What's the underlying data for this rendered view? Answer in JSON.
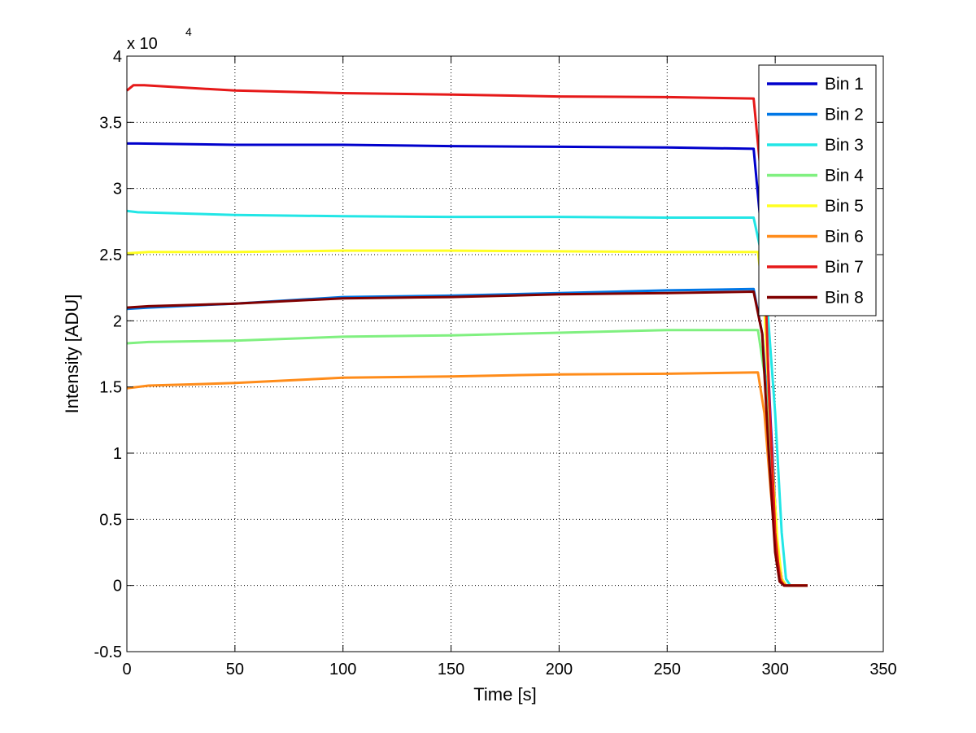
{
  "chart_data": {
    "type": "line",
    "title": "",
    "xlabel": "Time [s]",
    "ylabel": "Intensity [ADU]",
    "y_multiplier_label": "x 10",
    "y_multiplier_exponent": "4",
    "xlim": [
      0,
      350
    ],
    "ylim": [
      -0.5,
      4
    ],
    "x_ticks": [
      "0",
      "50",
      "100",
      "150",
      "200",
      "250",
      "300",
      "350"
    ],
    "y_ticks": [
      "-0.5",
      "0",
      "0.5",
      "1",
      "1.5",
      "2",
      "2.5",
      "3",
      "3.5",
      "4"
    ],
    "x_tick_values": [
      0,
      50,
      100,
      150,
      200,
      250,
      300,
      350
    ],
    "y_tick_values": [
      -0.5,
      0,
      0.5,
      1,
      1.5,
      2,
      2.5,
      3,
      3.5,
      4
    ],
    "grid": true,
    "legend_position": "top-right",
    "series": [
      {
        "name": "Bin 1",
        "color": "#0000cc",
        "x": [
          0,
          5,
          50,
          100,
          150,
          200,
          250,
          290,
          294,
          298,
          301,
          303,
          305,
          315
        ],
        "y": [
          3.34,
          3.34,
          3.33,
          3.33,
          3.32,
          3.315,
          3.31,
          3.3,
          2.6,
          1.2,
          0.3,
          0.05,
          0,
          0
        ]
      },
      {
        "name": "Bin 2",
        "color": "#0077e6",
        "x": [
          0,
          10,
          50,
          100,
          150,
          200,
          250,
          290,
          294,
          298,
          301,
          303,
          305,
          315
        ],
        "y": [
          2.09,
          2.1,
          2.13,
          2.18,
          2.19,
          2.21,
          2.23,
          2.24,
          1.9,
          1.0,
          0.3,
          0.05,
          0,
          0
        ]
      },
      {
        "name": "Bin 3",
        "color": "#22e6e6",
        "x": [
          0,
          5,
          50,
          100,
          150,
          200,
          250,
          290,
          295,
          300,
          303,
          305,
          307,
          315
        ],
        "y": [
          2.83,
          2.82,
          2.8,
          2.79,
          2.785,
          2.785,
          2.78,
          2.78,
          2.4,
          1.3,
          0.4,
          0.05,
          0,
          0
        ]
      },
      {
        "name": "Bin 4",
        "color": "#80f080",
        "x": [
          0,
          10,
          50,
          100,
          150,
          200,
          250,
          292,
          295,
          298,
          301,
          303,
          305,
          315
        ],
        "y": [
          1.83,
          1.84,
          1.85,
          1.88,
          1.89,
          1.91,
          1.93,
          1.93,
          1.6,
          0.9,
          0.3,
          0.05,
          0,
          0
        ]
      },
      {
        "name": "Bin 5",
        "color": "#ffff22",
        "x": [
          0,
          10,
          50,
          100,
          150,
          200,
          250,
          292,
          295,
          298,
          301,
          303,
          305,
          315
        ],
        "y": [
          2.51,
          2.52,
          2.52,
          2.53,
          2.53,
          2.525,
          2.52,
          2.52,
          2.1,
          1.1,
          0.35,
          0.05,
          0,
          0
        ]
      },
      {
        "name": "Bin 6",
        "color": "#ff8c1a",
        "x": [
          0,
          10,
          50,
          100,
          150,
          200,
          250,
          292,
          295,
          298,
          301,
          303,
          305,
          315
        ],
        "y": [
          1.49,
          1.51,
          1.53,
          1.57,
          1.58,
          1.595,
          1.6,
          1.61,
          1.3,
          0.7,
          0.2,
          0.03,
          0,
          0
        ]
      },
      {
        "name": "Bin 7",
        "color": "#e61919",
        "x": [
          0,
          3,
          8,
          50,
          100,
          150,
          200,
          250,
          290,
          294,
          297,
          300,
          302,
          304,
          315
        ],
        "y": [
          3.74,
          3.78,
          3.78,
          3.74,
          3.72,
          3.71,
          3.695,
          3.69,
          3.68,
          3.0,
          1.5,
          0.4,
          0.05,
          0,
          0
        ]
      },
      {
        "name": "Bin 8",
        "color": "#800000",
        "x": [
          0,
          10,
          50,
          100,
          150,
          200,
          250,
          290,
          294,
          297,
          300,
          302,
          304,
          315
        ],
        "y": [
          2.1,
          2.11,
          2.13,
          2.17,
          2.18,
          2.2,
          2.21,
          2.22,
          1.9,
          1.0,
          0.25,
          0.03,
          0,
          0
        ]
      }
    ]
  }
}
